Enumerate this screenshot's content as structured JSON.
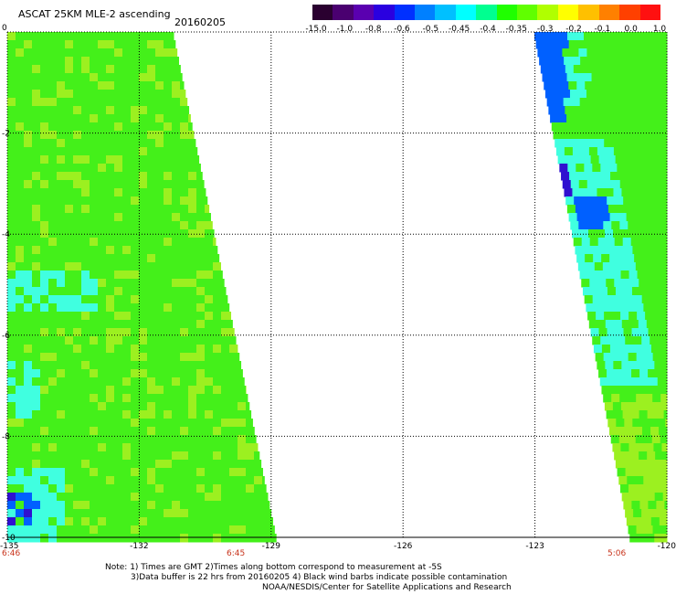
{
  "header": {
    "title": "ASCAT 25KM MLE-2 ascending",
    "date": "20160205"
  },
  "colorbar": {
    "labels": [
      "-15.0",
      "-1.0",
      "-0.8",
      "-0.6",
      "-0.5",
      "-0.45",
      "-0.4",
      "-0.35",
      "-0.3",
      "-0.2",
      "-0.1",
      "0.0",
      "1.0"
    ],
    "colors": [
      "#2a0030",
      "#4a0070",
      "#5a00b0",
      "#2a00e0",
      "#0030ff",
      "#0080ff",
      "#00c0ff",
      "#00ffff",
      "#00ff90",
      "#20ff00",
      "#60ff00",
      "#b0ff00",
      "#ffff00",
      "#ffc000",
      "#ff8000",
      "#ff4000",
      "#ff1010"
    ]
  },
  "map": {
    "lat_labels": [
      "0",
      "-2",
      "-4",
      "-6",
      "-8",
      "-10"
    ],
    "lon_labels": [
      "-135",
      "-132",
      "-129",
      "-126",
      "-123",
      "-120"
    ],
    "colors": {
      "green": "#44f01a",
      "lime": "#9cf020",
      "cyan": "#40ffe0",
      "blue": "#0060ff",
      "violet": "#3010d0"
    }
  },
  "times": {
    "left": "6:46",
    "middle": "6:45",
    "right": "5:06"
  },
  "notes": [
    "Note: 1) Times are GMT 2)Times along bottom correspond to measurement at -5S",
    "3)Data buffer is 22 hrs from 20160205 4) Black wind barbs indicate possible contamination",
    "NOAA/NESDIS/Center for Satellite Applications and Research"
  ]
}
